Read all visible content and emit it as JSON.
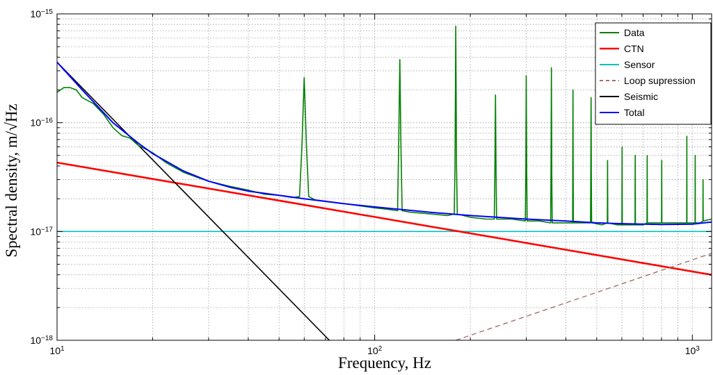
{
  "chart_data": {
    "type": "line",
    "title": "",
    "xlabel": "Frequency, Hz",
    "ylabel": "Spectral density, m/√Hz",
    "xscale": "log",
    "yscale": "log",
    "xlim": [
      10,
      1150
    ],
    "ylim": [
      1e-18,
      1e-15
    ],
    "grid": "major and minor, dotted",
    "legend_position": "top-right",
    "x_ticks": [
      {
        "value": 10,
        "base": "10",
        "exp": "1"
      },
      {
        "value": 100,
        "base": "10",
        "exp": "2"
      },
      {
        "value": 1000,
        "base": "10",
        "exp": "3"
      }
    ],
    "y_ticks": [
      {
        "value": 1e-18,
        "base": "10",
        "exp": "−18"
      },
      {
        "value": 1e-17,
        "base": "10",
        "exp": "−17"
      },
      {
        "value": 1e-16,
        "base": "10",
        "exp": "−16"
      },
      {
        "value": 1e-15,
        "base": "10",
        "exp": "−15"
      }
    ],
    "series": [
      {
        "name": "Data",
        "color": "#008000",
        "style": "solid",
        "x": [
          10,
          10.5,
          11,
          11.5,
          12,
          13,
          14,
          15,
          16,
          17,
          18,
          20,
          22,
          25,
          28,
          30,
          35,
          40,
          45,
          50,
          55,
          58,
          59,
          60,
          61,
          62,
          65,
          70,
          80,
          90,
          100,
          110,
          118,
          119,
          120,
          121,
          122,
          130,
          150,
          170,
          178,
          179,
          180,
          181,
          182,
          200,
          225,
          238,
          239,
          240,
          241,
          242,
          270,
          298,
          299,
          300,
          301,
          302,
          330,
          358,
          359,
          360,
          361,
          362,
          400,
          420,
          421,
          422,
          460,
          478,
          479,
          480,
          481,
          482,
          520,
          540,
          541,
          542,
          580,
          600,
          601,
          602,
          640,
          660,
          661,
          662,
          700,
          720,
          721,
          722,
          780,
          800,
          801,
          802,
          850,
          900,
          960,
          961,
          962,
          1000,
          1020,
          1021,
          1022,
          1060,
          1080,
          1081,
          1082,
          1150
        ],
        "y": [
          1.9e-16,
          2.1e-16,
          2.1e-16,
          2e-16,
          1.7e-16,
          1.5e-16,
          1.2e-16,
          9e-17,
          7.6e-17,
          7.2e-17,
          6.2e-17,
          5.3e-17,
          4.3e-17,
          3.5e-17,
          3.1e-17,
          2.9e-17,
          2.6e-17,
          2.4e-17,
          2.2e-17,
          2.15e-17,
          2.05e-17,
          2.1e-17,
          6e-17,
          2.6e-16,
          6e-17,
          2.1e-17,
          1.95e-17,
          1.9e-17,
          1.8e-17,
          1.72e-17,
          1.65e-17,
          1.6e-17,
          1.55e-17,
          6e-17,
          3.8e-16,
          6e-17,
          1.55e-17,
          1.5e-17,
          1.45e-17,
          1.4e-17,
          1.45e-17,
          4e-17,
          7.7e-16,
          4e-17,
          1.45e-17,
          1.35e-17,
          1.3e-17,
          1.3e-17,
          3.5e-17,
          1.8e-16,
          3.5e-17,
          1.3e-17,
          1.3e-17,
          1.25e-17,
          3.5e-17,
          2.7e-16,
          3.5e-17,
          1.25e-17,
          1.25e-17,
          1.2e-17,
          3.5e-17,
          3.2e-16,
          3.5e-17,
          1.2e-17,
          1.2e-17,
          1.2e-17,
          2e-16,
          1.2e-17,
          1.2e-17,
          1.2e-17,
          3e-17,
          1.7e-16,
          3e-17,
          1.2e-17,
          1.15e-17,
          1.2e-17,
          4.5e-17,
          1.2e-17,
          1.15e-17,
          1.15e-17,
          6e-17,
          1.15e-17,
          1.15e-17,
          1.15e-17,
          5e-17,
          1.15e-17,
          1.15e-17,
          1.2e-17,
          5e-17,
          1.2e-17,
          1.2e-17,
          1.2e-17,
          4.5e-17,
          1.2e-17,
          1.2e-17,
          1.2e-17,
          1.2e-17,
          7.5e-17,
          1.2e-17,
          1.2e-17,
          1.2e-17,
          5e-17,
          1.2e-17,
          1.2e-17,
          1.25e-17,
          3e-17,
          1.25e-17,
          1.3e-17
        ]
      },
      {
        "name": "CTN",
        "color": "#ff0000",
        "style": "solid",
        "x": [
          10,
          100,
          1150
        ],
        "y": [
          4.3e-17,
          1.36e-17,
          4e-18
        ]
      },
      {
        "name": "Sensor",
        "color": "#00bfbf",
        "style": "solid",
        "x": [
          10,
          1150
        ],
        "y": [
          1e-17,
          1e-17
        ]
      },
      {
        "name": "Loop supression",
        "color": "#a0706a",
        "style": "dashed",
        "x": [
          180,
          1150
        ],
        "y": [
          1e-18,
          6.3e-18
        ]
      },
      {
        "name": "Seismic",
        "color": "#000000",
        "style": "solid",
        "x": [
          10,
          72
        ],
        "y": [
          3.6e-16,
          1e-18
        ]
      },
      {
        "name": "Total",
        "color": "#0000ff",
        "style": "solid",
        "x": [
          10,
          12,
          15,
          18,
          20,
          25,
          30,
          35,
          40,
          50,
          60,
          80,
          100,
          150,
          200,
          300,
          400,
          500,
          600,
          800,
          1000,
          1150
        ],
        "y": [
          3.6e-16,
          2e-16,
          1e-16,
          6.5e-17,
          5.2e-17,
          3.6e-17,
          2.9e-17,
          2.55e-17,
          2.35e-17,
          2.15e-17,
          2e-17,
          1.8e-17,
          1.68e-17,
          1.5e-17,
          1.4e-17,
          1.3e-17,
          1.25e-17,
          1.2e-17,
          1.18e-17,
          1.16e-17,
          1.17e-17,
          1.22e-17
        ]
      }
    ]
  }
}
